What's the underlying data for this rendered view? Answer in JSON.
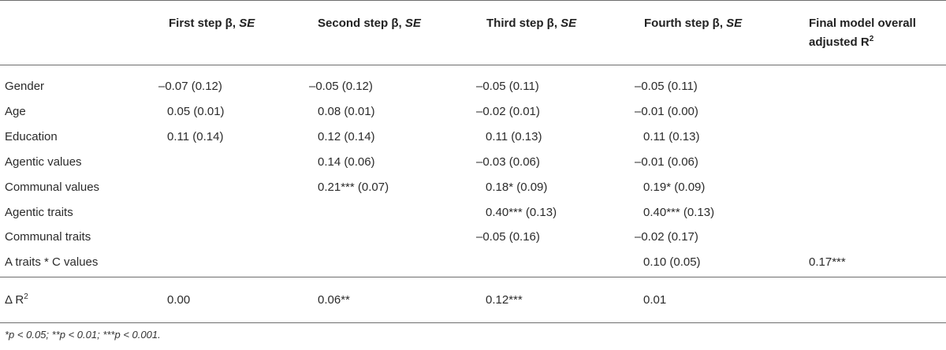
{
  "headers": {
    "col1": {
      "text": "First step β, ",
      "se": "SE"
    },
    "col2": {
      "text": "Second step β, ",
      "se": "SE"
    },
    "col3": {
      "text": "Third step β, ",
      "se": "SE"
    },
    "col4": {
      "text": "Fourth step β, ",
      "se": "SE"
    },
    "col5_line1": "Final model overall",
    "col5_line2": "adjusted R",
    "col5_sup": "2"
  },
  "rows": [
    {
      "label": "Gender",
      "c1": "–0.07 (0.12)",
      "c2": "–0.05 (0.12)",
      "c3": "–0.05 (0.11)",
      "c4": "–0.05 (0.11)",
      "c5": ""
    },
    {
      "label": "Age",
      "c1": "0.05 (0.01)",
      "c2": "0.08 (0.01)",
      "c3": "–0.02 (0.01)",
      "c4": "–0.01 (0.00)",
      "c5": ""
    },
    {
      "label": "Education",
      "c1": "0.11 (0.14)",
      "c2": "0.12 (0.14)",
      "c3": "0.11 (0.13)",
      "c4": "0.11 (0.13)",
      "c5": ""
    },
    {
      "label": "Agentic values",
      "c1": "",
      "c2": "0.14 (0.06)",
      "c3": "–0.03 (0.06)",
      "c4": "–0.01 (0.06)",
      "c5": ""
    },
    {
      "label": "Communal values",
      "c1": "",
      "c2": "0.21*** (0.07)",
      "c3": "0.18* (0.09)",
      "c4": "0.19* (0.09)",
      "c5": ""
    },
    {
      "label": "Agentic traits",
      "c1": "",
      "c2": "",
      "c3": "0.40*** (0.13)",
      "c4": "0.40*** (0.13)",
      "c5": ""
    },
    {
      "label": "Communal traits",
      "c1": "",
      "c2": "",
      "c3": "–0.05 (0.16)",
      "c4": "–0.02 (0.17)",
      "c5": ""
    },
    {
      "label": "A traits * C values",
      "c1": "",
      "c2": "",
      "c3": "",
      "c4": "0.10 (0.05)",
      "c5": "0.17***"
    }
  ],
  "delta": {
    "label": "Δ R",
    "label_sup": "2",
    "c1": "0.00",
    "c2": "0.06**",
    "c3": "0.12***",
    "c4": "0.01"
  },
  "footnote": "*p < 0.05; **p < 0.01; ***p < 0.001."
}
